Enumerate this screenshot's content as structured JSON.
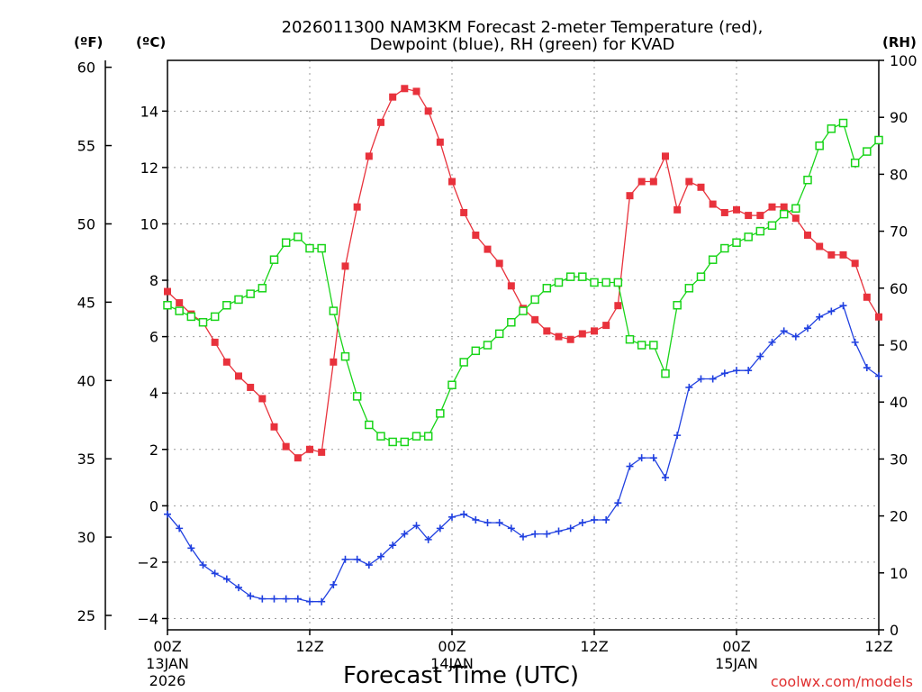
{
  "chart_data": {
    "type": "line",
    "title_line1": "2026011300 NAM3KM Forecast 2-meter Temperature (red),",
    "title_line2": "Dewpoint (blue), RH (green) for KVAD",
    "xlabel": "Forecast Time (UTC)",
    "credit": "coolwx.com/models",
    "axis_units": {
      "fahrenheit": "(ºF)",
      "celsius": "(ºC)",
      "rh": "(RH)"
    },
    "x_range_hours": [
      0,
      60
    ],
    "x_ticks": [
      {
        "hour": 0,
        "label": "00Z",
        "sub1": "13JAN",
        "sub2": "2026"
      },
      {
        "hour": 12,
        "label": "12Z",
        "sub1": "",
        "sub2": ""
      },
      {
        "hour": 24,
        "label": "00Z",
        "sub1": "14JAN",
        "sub2": ""
      },
      {
        "hour": 36,
        "label": "12Z",
        "sub1": "",
        "sub2": ""
      },
      {
        "hour": 48,
        "label": "00Z",
        "sub1": "15JAN",
        "sub2": ""
      },
      {
        "hour": 60,
        "label": "12Z",
        "sub1": "",
        "sub2": ""
      }
    ],
    "ylim_celsius": [
      -4.4,
      15.8
    ],
    "ylim_rh": [
      0,
      100
    ],
    "celsius_ticks": [
      -4,
      -2,
      0,
      2,
      4,
      6,
      8,
      10,
      12,
      14
    ],
    "celsius_tick_labels": [
      "−4",
      "−2",
      "0",
      "2",
      "4",
      "6",
      "8",
      "10",
      "12",
      "14"
    ],
    "fahrenheit_ticks": [
      25,
      30,
      35,
      40,
      45,
      50,
      55,
      60
    ],
    "fahrenheit_tick_labels": [
      "25",
      "30",
      "35",
      "40",
      "45",
      "50",
      "55",
      "60"
    ],
    "rh_ticks": [
      0,
      10,
      20,
      30,
      40,
      50,
      60,
      70,
      80,
      90,
      100
    ],
    "rh_tick_labels": [
      "0",
      "10",
      "20",
      "30",
      "40",
      "50",
      "60",
      "70",
      "80",
      "90",
      "100"
    ],
    "grid": true,
    "series": [
      {
        "name": "Temperature",
        "unit": "C",
        "axis": "celsius",
        "color": "#e8323c",
        "marker": "filled-square",
        "points": [
          [
            0,
            7.6
          ],
          [
            1,
            7.2
          ],
          [
            2,
            6.8
          ],
          [
            3,
            6.5
          ],
          [
            4,
            5.8
          ],
          [
            5,
            5.1
          ],
          [
            6,
            4.6
          ],
          [
            7,
            4.2
          ],
          [
            8,
            3.8
          ],
          [
            9,
            2.8
          ],
          [
            10,
            2.1
          ],
          [
            11,
            1.7
          ],
          [
            12,
            2.0
          ],
          [
            13,
            1.9
          ],
          [
            14,
            5.1
          ],
          [
            15,
            8.5
          ],
          [
            16,
            10.6
          ],
          [
            17,
            12.4
          ],
          [
            18,
            13.6
          ],
          [
            19,
            14.5
          ],
          [
            20,
            14.8
          ],
          [
            21,
            14.7
          ],
          [
            22,
            14.0
          ],
          [
            23,
            12.9
          ],
          [
            24,
            11.5
          ],
          [
            25,
            10.4
          ],
          [
            26,
            9.6
          ],
          [
            27,
            9.1
          ],
          [
            28,
            8.6
          ],
          [
            29,
            7.8
          ],
          [
            30,
            7.0
          ],
          [
            31,
            6.6
          ],
          [
            32,
            6.2
          ],
          [
            33,
            6.0
          ],
          [
            34,
            5.9
          ],
          [
            35,
            6.1
          ],
          [
            36,
            6.2
          ],
          [
            37,
            6.4
          ],
          [
            38,
            7.1
          ],
          [
            39,
            11.0
          ],
          [
            40,
            11.5
          ],
          [
            41,
            11.5
          ],
          [
            42,
            12.4
          ],
          [
            43,
            10.5
          ],
          [
            44,
            11.5
          ],
          [
            45,
            11.3
          ],
          [
            46,
            10.7
          ],
          [
            47,
            10.4
          ],
          [
            48,
            10.5
          ],
          [
            49,
            10.3
          ],
          [
            50,
            10.3
          ],
          [
            51,
            10.6
          ],
          [
            52,
            10.6
          ],
          [
            53,
            10.2
          ],
          [
            54,
            9.6
          ],
          [
            55,
            9.2
          ],
          [
            56,
            8.9
          ],
          [
            57,
            8.9
          ],
          [
            58,
            8.6
          ],
          [
            59,
            7.4
          ],
          [
            60,
            6.7
          ]
        ]
      },
      {
        "name": "Dewpoint",
        "unit": "C",
        "axis": "celsius",
        "color": "#2040e0",
        "marker": "plus",
        "points": [
          [
            0,
            -0.3
          ],
          [
            1,
            -0.8
          ],
          [
            2,
            -1.5
          ],
          [
            3,
            -2.1
          ],
          [
            4,
            -2.4
          ],
          [
            5,
            -2.6
          ],
          [
            6,
            -2.9
          ],
          [
            7,
            -3.2
          ],
          [
            8,
            -3.3
          ],
          [
            9,
            -3.3
          ],
          [
            10,
            -3.3
          ],
          [
            11,
            -3.3
          ],
          [
            12,
            -3.4
          ],
          [
            13,
            -3.4
          ],
          [
            14,
            -2.8
          ],
          [
            15,
            -1.9
          ],
          [
            16,
            -1.9
          ],
          [
            17,
            -2.1
          ],
          [
            18,
            -1.8
          ],
          [
            19,
            -1.4
          ],
          [
            20,
            -1.0
          ],
          [
            21,
            -0.7
          ],
          [
            22,
            -1.2
          ],
          [
            23,
            -0.8
          ],
          [
            24,
            -0.4
          ],
          [
            25,
            -0.3
          ],
          [
            26,
            -0.5
          ],
          [
            27,
            -0.6
          ],
          [
            28,
            -0.6
          ],
          [
            29,
            -0.8
          ],
          [
            30,
            -1.1
          ],
          [
            31,
            -1.0
          ],
          [
            32,
            -1.0
          ],
          [
            33,
            -0.9
          ],
          [
            34,
            -0.8
          ],
          [
            35,
            -0.6
          ],
          [
            36,
            -0.5
          ],
          [
            37,
            -0.5
          ],
          [
            38,
            0.1
          ],
          [
            39,
            1.4
          ],
          [
            40,
            1.7
          ],
          [
            41,
            1.7
          ],
          [
            42,
            1.0
          ],
          [
            43,
            2.5
          ],
          [
            44,
            4.2
          ],
          [
            45,
            4.5
          ],
          [
            46,
            4.5
          ],
          [
            47,
            4.7
          ],
          [
            48,
            4.8
          ],
          [
            49,
            4.8
          ],
          [
            50,
            5.3
          ],
          [
            51,
            5.8
          ],
          [
            52,
            6.2
          ],
          [
            53,
            6.0
          ],
          [
            54,
            6.3
          ],
          [
            55,
            6.7
          ],
          [
            56,
            6.9
          ],
          [
            57,
            7.1
          ],
          [
            58,
            5.8
          ],
          [
            59,
            4.9
          ],
          [
            60,
            4.6
          ]
        ]
      },
      {
        "name": "Relative Humidity",
        "unit": "%",
        "axis": "rh",
        "color": "#18d418",
        "marker": "open-square",
        "points": [
          [
            0,
            57
          ],
          [
            1,
            56
          ],
          [
            2,
            55
          ],
          [
            3,
            54
          ],
          [
            4,
            55
          ],
          [
            5,
            57
          ],
          [
            6,
            58
          ],
          [
            7,
            59
          ],
          [
            8,
            60
          ],
          [
            9,
            65
          ],
          [
            10,
            68
          ],
          [
            11,
            69
          ],
          [
            12,
            67
          ],
          [
            13,
            67
          ],
          [
            14,
            56
          ],
          [
            15,
            48
          ],
          [
            16,
            41
          ],
          [
            17,
            36
          ],
          [
            18,
            34
          ],
          [
            19,
            33
          ],
          [
            20,
            33
          ],
          [
            21,
            34
          ],
          [
            22,
            34
          ],
          [
            23,
            38
          ],
          [
            24,
            43
          ],
          [
            25,
            47
          ],
          [
            26,
            49
          ],
          [
            27,
            50
          ],
          [
            28,
            52
          ],
          [
            29,
            54
          ],
          [
            30,
            56
          ],
          [
            31,
            58
          ],
          [
            32,
            60
          ],
          [
            33,
            61
          ],
          [
            34,
            62
          ],
          [
            35,
            62
          ],
          [
            36,
            61
          ],
          [
            37,
            61
          ],
          [
            38,
            61
          ],
          [
            39,
            51
          ],
          [
            40,
            50
          ],
          [
            41,
            50
          ],
          [
            42,
            45
          ],
          [
            43,
            57
          ],
          [
            44,
            60
          ],
          [
            45,
            62
          ],
          [
            46,
            65
          ],
          [
            47,
            67
          ],
          [
            48,
            68
          ],
          [
            49,
            69
          ],
          [
            50,
            70
          ],
          [
            51,
            71
          ],
          [
            52,
            73
          ],
          [
            53,
            74
          ],
          [
            54,
            79
          ],
          [
            55,
            85
          ],
          [
            56,
            88
          ],
          [
            57,
            89
          ],
          [
            58,
            82
          ],
          [
            59,
            84
          ],
          [
            60,
            86
          ]
        ]
      }
    ]
  }
}
